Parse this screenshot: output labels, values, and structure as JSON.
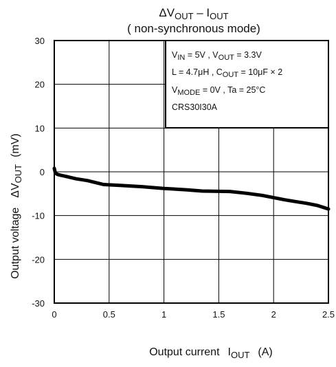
{
  "chart_data": {
    "type": "line",
    "title_sym": "ΔV",
    "title_sub1": "OUT",
    "title_dash": " – I",
    "title_sub2": "OUT",
    "subtitle": "( non-synchronous mode)",
    "ylabel_text": "Output voltage",
    "ylabel_sym": "ΔV",
    "ylabel_sub": "OUT",
    "ylabel_unit": "(mV)",
    "xlabel_text": "Output current",
    "xlabel_sym": "I",
    "xlabel_sub": "OUT",
    "xlabel_unit": "(A)",
    "xlim": [
      0,
      2.5
    ],
    "ylim": [
      -30,
      30
    ],
    "x_ticks": [
      0,
      0.5,
      1,
      1.5,
      2,
      2.5
    ],
    "x_tick_labels": [
      "0",
      "0.5",
      "1",
      "1.5",
      "2",
      "2.5"
    ],
    "y_ticks": [
      30,
      20,
      10,
      0,
      -10,
      -20,
      -30
    ],
    "y_tick_labels": [
      "30",
      "20",
      "10",
      "0",
      "-10",
      "-20",
      "-30"
    ],
    "grid": true,
    "series": [
      {
        "x": [
          0,
          0.01,
          0.03,
          0.06,
          0.1,
          0.15,
          0.2,
          0.3,
          0.4,
          0.45,
          0.6,
          0.8,
          1.0,
          1.2,
          1.35,
          1.6,
          1.75,
          1.9,
          2.0,
          2.1,
          2.2,
          2.3,
          2.4,
          2.5
        ],
        "y": [
          0.8,
          -0.3,
          -0.6,
          -0.8,
          -1.0,
          -1.3,
          -1.6,
          -2.0,
          -2.6,
          -2.9,
          -3.1,
          -3.4,
          -3.8,
          -4.1,
          -4.4,
          -4.5,
          -4.9,
          -5.4,
          -5.9,
          -6.4,
          -6.8,
          -7.2,
          -7.7,
          -8.5
        ]
      }
    ],
    "conditions": {
      "line1": {
        "a": "V",
        "a_sub": "IN",
        "b": " = 5V , V",
        "b_sub": "OUT",
        "c": " = 3.3V"
      },
      "line2": {
        "a": "L = 4.7μH , C",
        "a_sub": "OUT",
        "b": " = 10μF × 2"
      },
      "line3": {
        "a": "V",
        "a_sub": "MODE",
        "b": " = 0V , Ta = 25°C"
      },
      "line4": "CRS30I30A"
    }
  }
}
